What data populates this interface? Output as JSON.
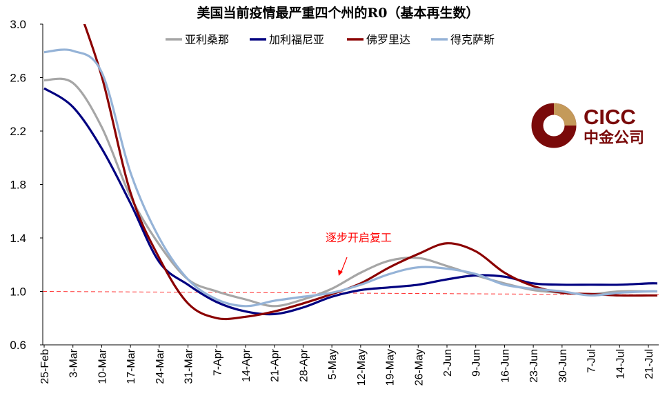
{
  "chart_data": {
    "type": "line",
    "title": "美国当前疫情最严重四个州的R0（基本再生数）",
    "xlabel": "",
    "ylabel": "",
    "ylim": [
      0.6,
      3.0
    ],
    "yticks": [
      "0.6",
      "1.0",
      "1.4",
      "1.8",
      "2.2",
      "2.6",
      "3.0"
    ],
    "x": [
      "25-Feb",
      "3-Mar",
      "10-Mar",
      "17-Mar",
      "24-Mar",
      "31-Mar",
      "7-Apr",
      "14-Apr",
      "21-Apr",
      "28-Apr",
      "5-May",
      "12-May",
      "19-May",
      "26-May",
      "2-Jun",
      "9-Jun",
      "16-Jun",
      "23-Jun",
      "30-Jun",
      "7-Jul",
      "14-Jul",
      "21-Jul"
    ],
    "legend_position": "top-center",
    "series": [
      {
        "name": "亚利桑那",
        "color": "#a6a6a6",
        "values": [
          2.58,
          2.56,
          2.23,
          1.71,
          1.35,
          1.09,
          1.0,
          0.94,
          0.89,
          0.94,
          1.02,
          1.14,
          1.23,
          1.25,
          1.19,
          1.12,
          1.06,
          1.01,
          0.99,
          0.98,
          1.0,
          1.0
        ]
      },
      {
        "name": "加利福尼亚",
        "color": "#000080",
        "values": [
          2.52,
          2.38,
          2.07,
          1.66,
          1.22,
          1.05,
          0.92,
          0.85,
          0.83,
          0.88,
          0.96,
          1.01,
          1.03,
          1.05,
          1.09,
          1.12,
          1.11,
          1.06,
          1.05,
          1.05,
          1.05,
          1.06
        ]
      },
      {
        "name": "佛罗里达",
        "color": "#8b0000",
        "values": [
          null,
          3.24,
          2.61,
          1.74,
          1.25,
          0.91,
          0.8,
          0.81,
          0.85,
          0.91,
          0.98,
          1.06,
          1.18,
          1.28,
          1.36,
          1.3,
          1.14,
          1.04,
          0.99,
          0.98,
          0.97,
          0.97
        ]
      },
      {
        "name": "得克萨斯",
        "color": "#95b3d7",
        "values": [
          2.79,
          2.8,
          2.64,
          1.89,
          1.4,
          1.09,
          0.94,
          0.89,
          0.93,
          0.96,
          0.99,
          1.05,
          1.13,
          1.18,
          1.17,
          1.13,
          1.05,
          1.02,
          1.0,
          0.97,
          0.99,
          1.0
        ]
      }
    ],
    "reference_line": {
      "value": 1.0,
      "color": "#ff0000",
      "style": "dashed"
    },
    "annotation": {
      "text": "逐步开启复工",
      "at": "5-May",
      "color": "#ff0000"
    }
  },
  "logo": {
    "name": "CICC",
    "cn": "中金公司"
  }
}
